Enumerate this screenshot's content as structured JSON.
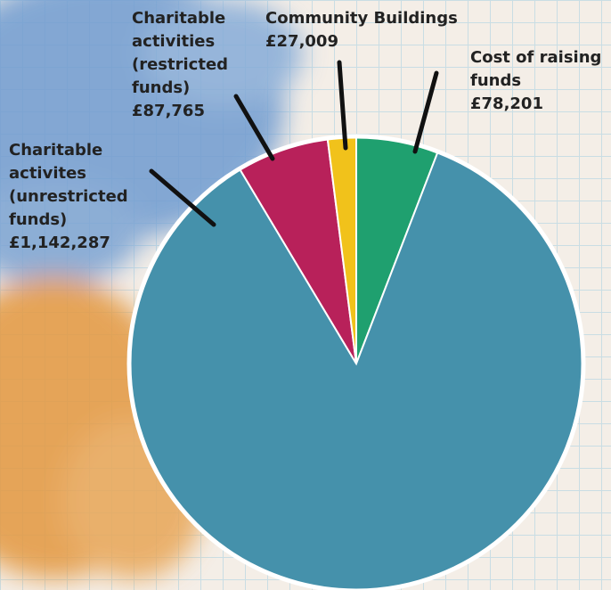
{
  "chart_data": {
    "type": "pie",
    "categories": [
      "Cost of raising funds",
      "Charitable activites (unrestricted funds)",
      "Charitable activities (restricted funds)",
      "Community Buildings"
    ],
    "values": [
      78201,
      1142287,
      87765,
      27009
    ],
    "value_labels": [
      "£78,201",
      "£1,142,287",
      "£87,765",
      "£27,009"
    ],
    "colors": [
      "#1fa06f",
      "#4591ab",
      "#b8215a",
      "#f1c21b"
    ]
  }
}
